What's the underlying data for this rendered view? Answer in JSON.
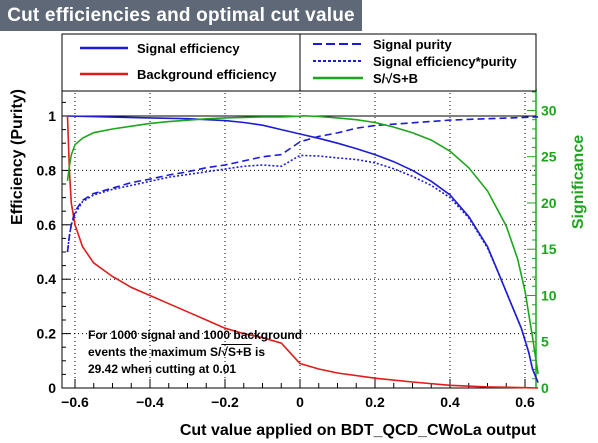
{
  "header": {
    "title": "Cut efficiencies and optimal cut value"
  },
  "legend": {
    "signal_efficiency": "Signal efficiency",
    "background_efficiency": "Background efficiency",
    "signal_purity": "Signal purity",
    "signal_eff_purity": "Signal efficiency*purity",
    "significance": "S/√S+B"
  },
  "annotation": {
    "line1": "For 1000 signal and 1000 background",
    "line2_prefix": "events the maximum S/",
    "line2_sqrt": "√S+B",
    "line2_suffix": " is",
    "line3": "29.42 when cutting at  0.01"
  },
  "colors": {
    "signal": "#1c1cd6",
    "background": "#e01c1c",
    "significance": "#1ea51e",
    "header_bg": "#5e6877",
    "axis": "#000000"
  },
  "chart_data": {
    "type": "line",
    "title": "Cut efficiencies and optimal cut value",
    "xlabel": "Cut value applied on BDT_QCD_CWoLa output",
    "ylabel": "Efficiency (Purity)",
    "y2label": "Significance",
    "xlim": [
      -0.62,
      0.635
    ],
    "ylim": [
      0,
      1.1
    ],
    "y2lim": [
      0,
      32.3
    ],
    "x_ticks": [
      -0.6,
      -0.4,
      -0.2,
      0,
      0.2,
      0.4,
      0.6
    ],
    "x_tick_labels": [
      "−0.6",
      "−0.4",
      "−0.2",
      "0",
      "0.2",
      "0.4",
      "0.6"
    ],
    "y_ticks": [
      0,
      0.2,
      0.4,
      0.6,
      0.8,
      1
    ],
    "y_tick_labels": [
      "0",
      "0.2",
      "0.4",
      "0.6",
      "0.8",
      "1"
    ],
    "y2_ticks": [
      0,
      5,
      10,
      15,
      20,
      25,
      30
    ],
    "y2_tick_labels": [
      "0",
      "5",
      "10",
      "15",
      "20",
      "25",
      "30"
    ],
    "grid": true,
    "series": [
      {
        "name": "Signal efficiency",
        "axis": "left",
        "style": "solid",
        "color": "#1c1cd6",
        "x": [
          -0.62,
          -0.5,
          -0.4,
          -0.3,
          -0.2,
          -0.15,
          -0.1,
          -0.05,
          0,
          0.05,
          0.1,
          0.15,
          0.2,
          0.25,
          0.3,
          0.35,
          0.4,
          0.45,
          0.5,
          0.53,
          0.56,
          0.59,
          0.61,
          0.62,
          0.635
        ],
        "y": [
          1.0,
          0.996,
          0.993,
          0.99,
          0.983,
          0.976,
          0.966,
          0.95,
          0.934,
          0.918,
          0.9,
          0.88,
          0.858,
          0.832,
          0.8,
          0.76,
          0.71,
          0.63,
          0.52,
          0.42,
          0.32,
          0.22,
          0.13,
          0.07,
          0.02
        ]
      },
      {
        "name": "Background efficiency",
        "axis": "left",
        "style": "solid",
        "color": "#e01c1c",
        "x": [
          -0.62,
          -0.615,
          -0.61,
          -0.6,
          -0.58,
          -0.55,
          -0.5,
          -0.45,
          -0.4,
          -0.35,
          -0.3,
          -0.25,
          -0.2,
          -0.15,
          -0.1,
          -0.05,
          0,
          0.05,
          0.1,
          0.2,
          0.3,
          0.4,
          0.5,
          0.6,
          0.635
        ],
        "y": [
          1.0,
          0.8,
          0.68,
          0.6,
          0.52,
          0.46,
          0.41,
          0.37,
          0.34,
          0.31,
          0.28,
          0.25,
          0.22,
          0.2,
          0.185,
          0.165,
          0.09,
          0.07,
          0.055,
          0.036,
          0.022,
          0.01,
          0.004,
          0.001,
          0.0
        ]
      },
      {
        "name": "Signal purity",
        "axis": "left",
        "style": "dashed",
        "color": "#1c1cd6",
        "x": [
          -0.62,
          -0.615,
          -0.61,
          -0.6,
          -0.58,
          -0.55,
          -0.5,
          -0.45,
          -0.4,
          -0.35,
          -0.3,
          -0.25,
          -0.2,
          -0.15,
          -0.1,
          -0.05,
          0,
          0.05,
          0.1,
          0.15,
          0.2,
          0.3,
          0.4,
          0.5,
          0.6,
          0.635
        ],
        "y": [
          0.5,
          0.56,
          0.6,
          0.65,
          0.69,
          0.715,
          0.735,
          0.755,
          0.768,
          0.783,
          0.795,
          0.81,
          0.82,
          0.835,
          0.85,
          0.858,
          0.905,
          0.925,
          0.938,
          0.955,
          0.965,
          0.975,
          0.985,
          0.99,
          0.995,
          0.997
        ]
      },
      {
        "name": "Signal efficiency*purity",
        "axis": "left",
        "style": "dotted",
        "color": "#1c1cd6",
        "x": [
          -0.62,
          -0.615,
          -0.61,
          -0.6,
          -0.58,
          -0.55,
          -0.5,
          -0.45,
          -0.4,
          -0.35,
          -0.3,
          -0.25,
          -0.2,
          -0.15,
          -0.1,
          -0.05,
          0,
          0.05,
          0.1,
          0.15,
          0.2,
          0.25,
          0.3,
          0.35,
          0.4,
          0.45,
          0.5,
          0.53,
          0.56,
          0.59,
          0.61,
          0.62,
          0.635
        ],
        "y": [
          0.5,
          0.56,
          0.6,
          0.64,
          0.685,
          0.71,
          0.73,
          0.745,
          0.76,
          0.775,
          0.785,
          0.795,
          0.805,
          0.815,
          0.82,
          0.815,
          0.855,
          0.853,
          0.846,
          0.84,
          0.828,
          0.806,
          0.778,
          0.745,
          0.7,
          0.625,
          0.515,
          0.42,
          0.32,
          0.22,
          0.13,
          0.07,
          0.02
        ]
      },
      {
        "name": "S/√S+B",
        "axis": "right",
        "style": "solid",
        "color": "#1ea51e",
        "x": [
          -0.62,
          -0.615,
          -0.61,
          -0.6,
          -0.58,
          -0.55,
          -0.5,
          -0.45,
          -0.4,
          -0.35,
          -0.3,
          -0.25,
          -0.2,
          -0.15,
          -0.1,
          -0.05,
          0,
          0.01,
          0.05,
          0.1,
          0.15,
          0.2,
          0.25,
          0.3,
          0.35,
          0.4,
          0.45,
          0.5,
          0.55,
          0.58,
          0.6,
          0.62,
          0.635
        ],
        "y": [
          22.4,
          24.0,
          25.2,
          26.3,
          27.0,
          27.6,
          28.0,
          28.3,
          28.6,
          28.8,
          28.95,
          29.1,
          29.2,
          29.25,
          29.3,
          29.3,
          29.38,
          29.42,
          29.35,
          29.2,
          29.0,
          28.7,
          28.2,
          27.6,
          26.8,
          25.6,
          23.8,
          21.3,
          17.5,
          14.0,
          10.5,
          5.5,
          1.5
        ]
      }
    ]
  }
}
